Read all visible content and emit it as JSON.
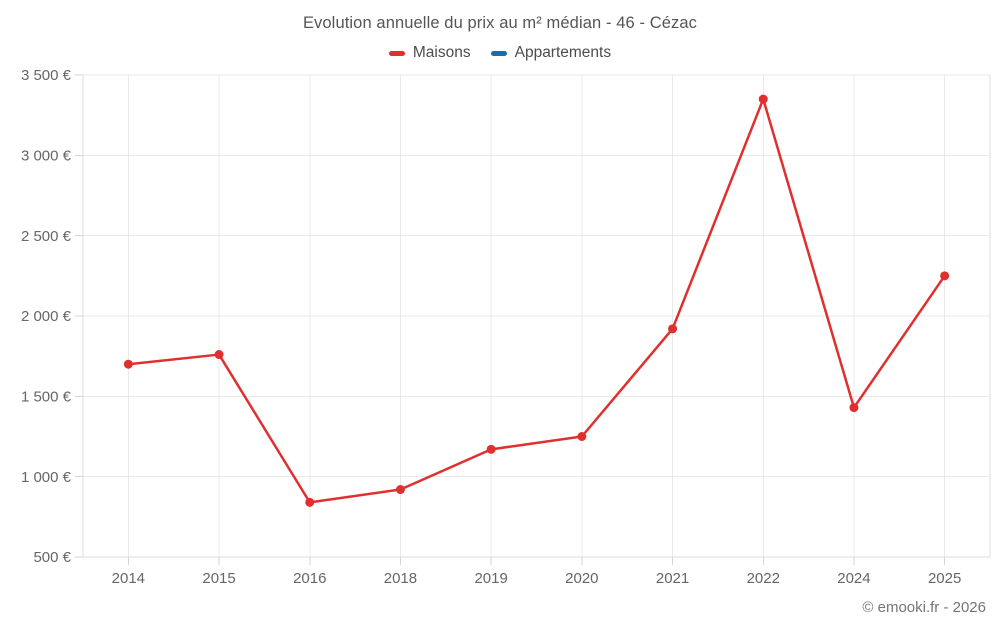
{
  "header": {
    "title": "Evolution annuelle du prix au m² médian - 46 - Cézac"
  },
  "legend": {
    "items": [
      {
        "label": "Maisons",
        "color": "#df2f2f"
      },
      {
        "label": "Appartements",
        "color": "#1a6ca4"
      }
    ]
  },
  "footer": {
    "watermark": "© emooki.fr - 2026"
  },
  "chart_data": {
    "type": "line",
    "title": "Evolution annuelle du prix au m² médian - 46 - Cézac",
    "categories": [
      "2014",
      "2015",
      "2016",
      "2018",
      "2019",
      "2020",
      "2021",
      "2022",
      "2024",
      "2025"
    ],
    "series": [
      {
        "name": "Maisons",
        "color": "#df2f2f",
        "values": [
          1700,
          1760,
          840,
          920,
          1170,
          1250,
          1920,
          3350,
          1430,
          2250
        ]
      },
      {
        "name": "Appartements",
        "color": "#1a6ca4",
        "values": []
      }
    ],
    "xlabel": "",
    "ylabel": "",
    "ylim": [
      500,
      3500
    ],
    "ytick_step": 500,
    "ytick_labels": [
      "500 €",
      "1 000 €",
      "1 500 €",
      "2 000 €",
      "2 500 €",
      "3 000 €",
      "3 500 €"
    ],
    "grid": true,
    "legend_position": "top",
    "marker_radius": 4.5,
    "line_width": 2.5
  }
}
